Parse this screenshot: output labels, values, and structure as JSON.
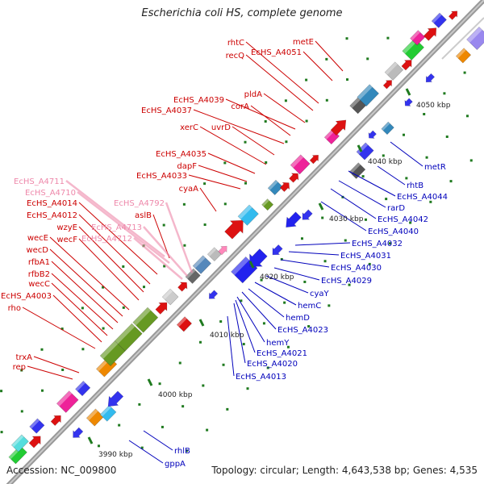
{
  "title": "Escherichia coli HS, complete genome",
  "footer": {
    "accession": "Accession: NC_009800",
    "topology": "Topology: circular; Length: 4,643,538 bp; Genes: 4,535"
  },
  "colors": {
    "forward_label": "#cc0000",
    "reverse_label": "#0000bb",
    "pseudo_label": "#ee88aa",
    "axis": "#999999"
  },
  "ticks": [
    "3990 kbp",
    "4000 kbp",
    "4010 kbp",
    "4020 kbp",
    "4030 kbp",
    "4040 kbp",
    "4050 kbp"
  ],
  "forward_labels": [
    "metE",
    "EcHS_A4051",
    "rhtC",
    "recQ",
    "pldA",
    "EcHS_A4039",
    "corA",
    "EcHS_A4037",
    "uvrD",
    "xerC",
    "EcHS_A4035",
    "dapF",
    "EcHS_A4033",
    "cyaA",
    "aslB",
    "EcHS_A4014",
    "EcHS_A4012",
    "wzyE",
    "wecF",
    "wecE",
    "wecD",
    "rfbA1",
    "rfbB2",
    "wecC",
    "EcHS_A4003",
    "rho",
    "trxA",
    "rep"
  ],
  "pseudo_labels": [
    "EcHS_A4711",
    "EcHS_A4710",
    "EcHS_A4792",
    "EcHS_A4713",
    "EcHS_A4712"
  ],
  "reverse_labels": [
    "metR",
    "rhtB",
    "EcHS_A4044",
    "rarD",
    "EcHS_A4042",
    "EcHS_A4040",
    "EcHS_A4032",
    "EcHS_A4031",
    "EcHS_A4030",
    "EcHS_A4029",
    "cyaY",
    "hemC",
    "hemD",
    "EcHS_A4023",
    "hemY",
    "EcHS_A4021",
    "EcHS_A4020",
    "EcHS_A4013",
    "rhlB",
    "gppA"
  ]
}
